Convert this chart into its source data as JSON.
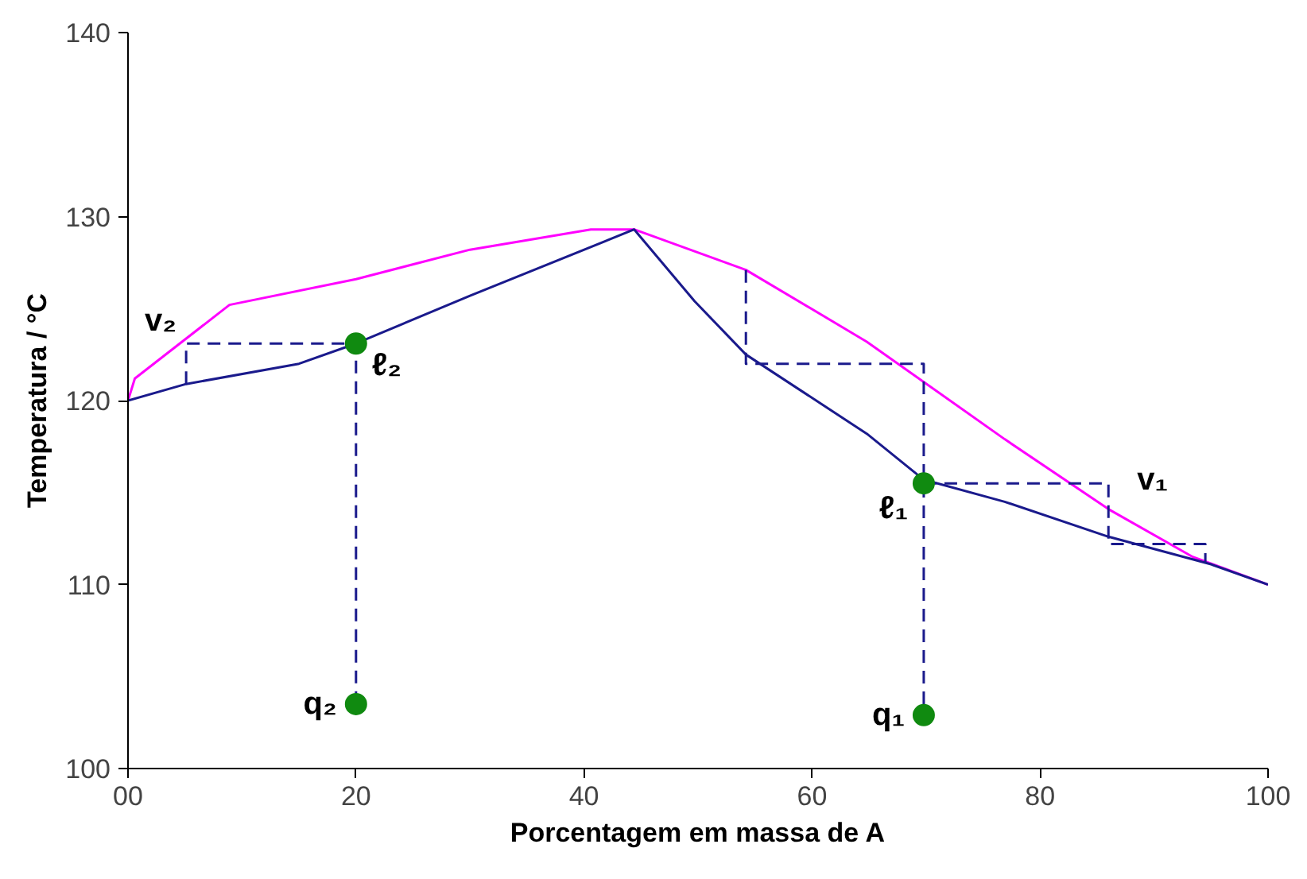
{
  "chart_data": {
    "type": "line",
    "xlabel": "Porcentagem em massa de A",
    "ylabel": "Temperatura / °C",
    "xlim": [
      0,
      100
    ],
    "ylim": [
      100,
      140
    ],
    "xticks": [
      {
        "value": 0,
        "label": "00"
      },
      20,
      40,
      60,
      80,
      100
    ],
    "yticks": [
      100,
      110,
      120,
      130,
      140
    ],
    "grid": false,
    "marker": "none",
    "line_style": "solid",
    "series": [
      {
        "color": "#ff00ff",
        "x": [
          0,
          0.6,
          8.9,
          20,
          30,
          40.6,
          44.4,
          54.2,
          64.8,
          76.9,
          86,
          93.4,
          100
        ],
        "values": [
          120,
          121.2,
          125.2,
          126.6,
          128.2,
          129.3,
          129.3,
          127.1,
          123.2,
          117.9,
          114.1,
          111.5,
          110
        ]
      },
      {
        "color": "#1a1a8c",
        "x": [
          0,
          5.1,
          15,
          20,
          30,
          44.4,
          49.7,
          54.2,
          64.8,
          69.8,
          76.9,
          86,
          95,
          100
        ],
        "values": [
          120,
          120.9,
          122,
          123.1,
          125.7,
          129.3,
          125.4,
          122.5,
          118.2,
          115.7,
          114.5,
          112.6,
          111.1,
          110
        ]
      },
      {
        "color": "#1a1a8c",
        "line_style": "dashed",
        "x": [
          5.1,
          5.1,
          20,
          20
        ],
        "values": [
          120.9,
          123.1,
          123.1,
          103.5
        ]
      },
      {
        "color": "#1a1a8c",
        "line_style": "dashed",
        "x": [
          54.2,
          54.2,
          69.8,
          69.8
        ],
        "values": [
          127.1,
          122,
          122,
          102.9
        ]
      },
      {
        "color": "#1a1a8c",
        "line_style": "dashed",
        "x": [
          69.8,
          86,
          86,
          94.5,
          94.5
        ],
        "values": [
          115.5,
          115.5,
          112.2,
          112.2,
          111.2
        ]
      },
      {
        "type": "scatter",
        "marker": "circle",
        "color": "#108a10",
        "x": [
          20,
          20,
          69.8,
          69.8
        ],
        "values": [
          123.1,
          103.5,
          115.5,
          102.9
        ]
      }
    ],
    "annotations": [
      {
        "text": "v₂",
        "x": 5.1,
        "y": 123.1
      },
      {
        "text": "ℓ₂",
        "x": 20,
        "y": 123.1
      },
      {
        "text": "q₂",
        "x": 20,
        "y": 103.5
      },
      {
        "text": "ℓ₁",
        "x": 69.8,
        "y": 115.5
      },
      {
        "text": "q₁",
        "x": 69.8,
        "y": 102.9
      },
      {
        "text": "v₁",
        "x": 86,
        "y": 115.5
      }
    ]
  }
}
